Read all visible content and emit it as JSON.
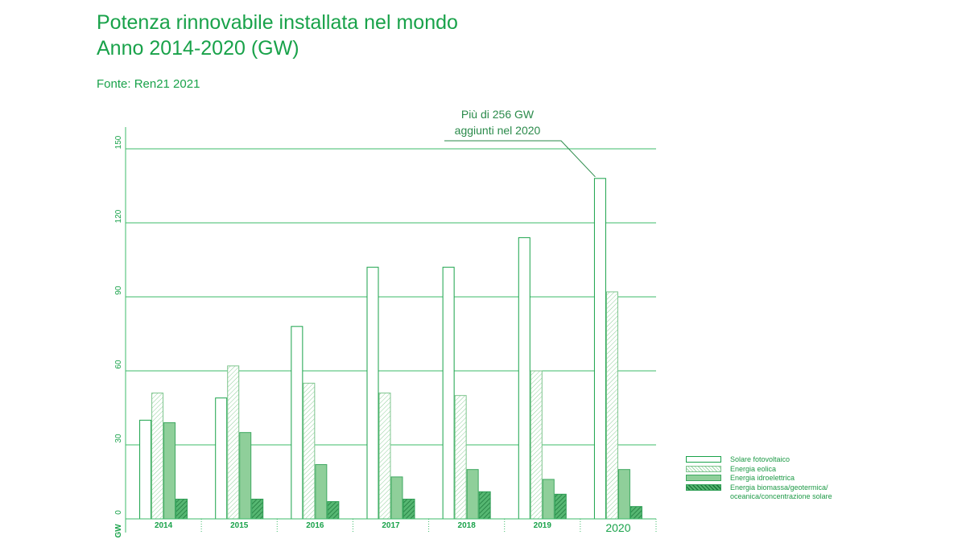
{
  "header": {
    "title_line1": "Potenza rinnovabile installata nel mondo",
    "title_line2": "Anno 2014-2020 (GW)",
    "source": "Fonte: Ren21 2021"
  },
  "annotation": {
    "line1": "Più di 256 GW",
    "line2": "aggiunti nel 2020"
  },
  "colors": {
    "accent": "#19a24a",
    "grid": "#3dbb6a",
    "hydro_fill": "#8fcf9a",
    "bio_fill": "#2e9e55"
  },
  "chart_data": {
    "type": "bar",
    "title": "Potenza rinnovabile installata nel mondo Anno 2014-2020 (GW)",
    "ylabel": "GW",
    "ylim": [
      0,
      150
    ],
    "yticks": [
      0,
      30,
      60,
      90,
      120,
      150
    ],
    "grid": true,
    "legend_position": "bottom-right",
    "categories": [
      "2014",
      "2015",
      "2016",
      "2017",
      "2018",
      "2019",
      "2020"
    ],
    "series": [
      {
        "name": "Solare fotovoltaico",
        "pattern": "outline",
        "values": [
          40,
          49,
          78,
          102,
          102,
          114,
          138
        ]
      },
      {
        "name": "Energia eolica",
        "pattern": "hatch-light",
        "values": [
          51,
          62,
          55,
          51,
          50,
          60,
          92
        ]
      },
      {
        "name": "Energia idroelettrica",
        "pattern": "solid-light",
        "values": [
          39,
          35,
          22,
          17,
          20,
          16,
          20
        ]
      },
      {
        "name": "Energia biomassa/geotermica/ oceanica/concentrazione solare",
        "pattern": "hatch-dark",
        "values": [
          8,
          8,
          7,
          8,
          11,
          10,
          5
        ]
      }
    ]
  }
}
